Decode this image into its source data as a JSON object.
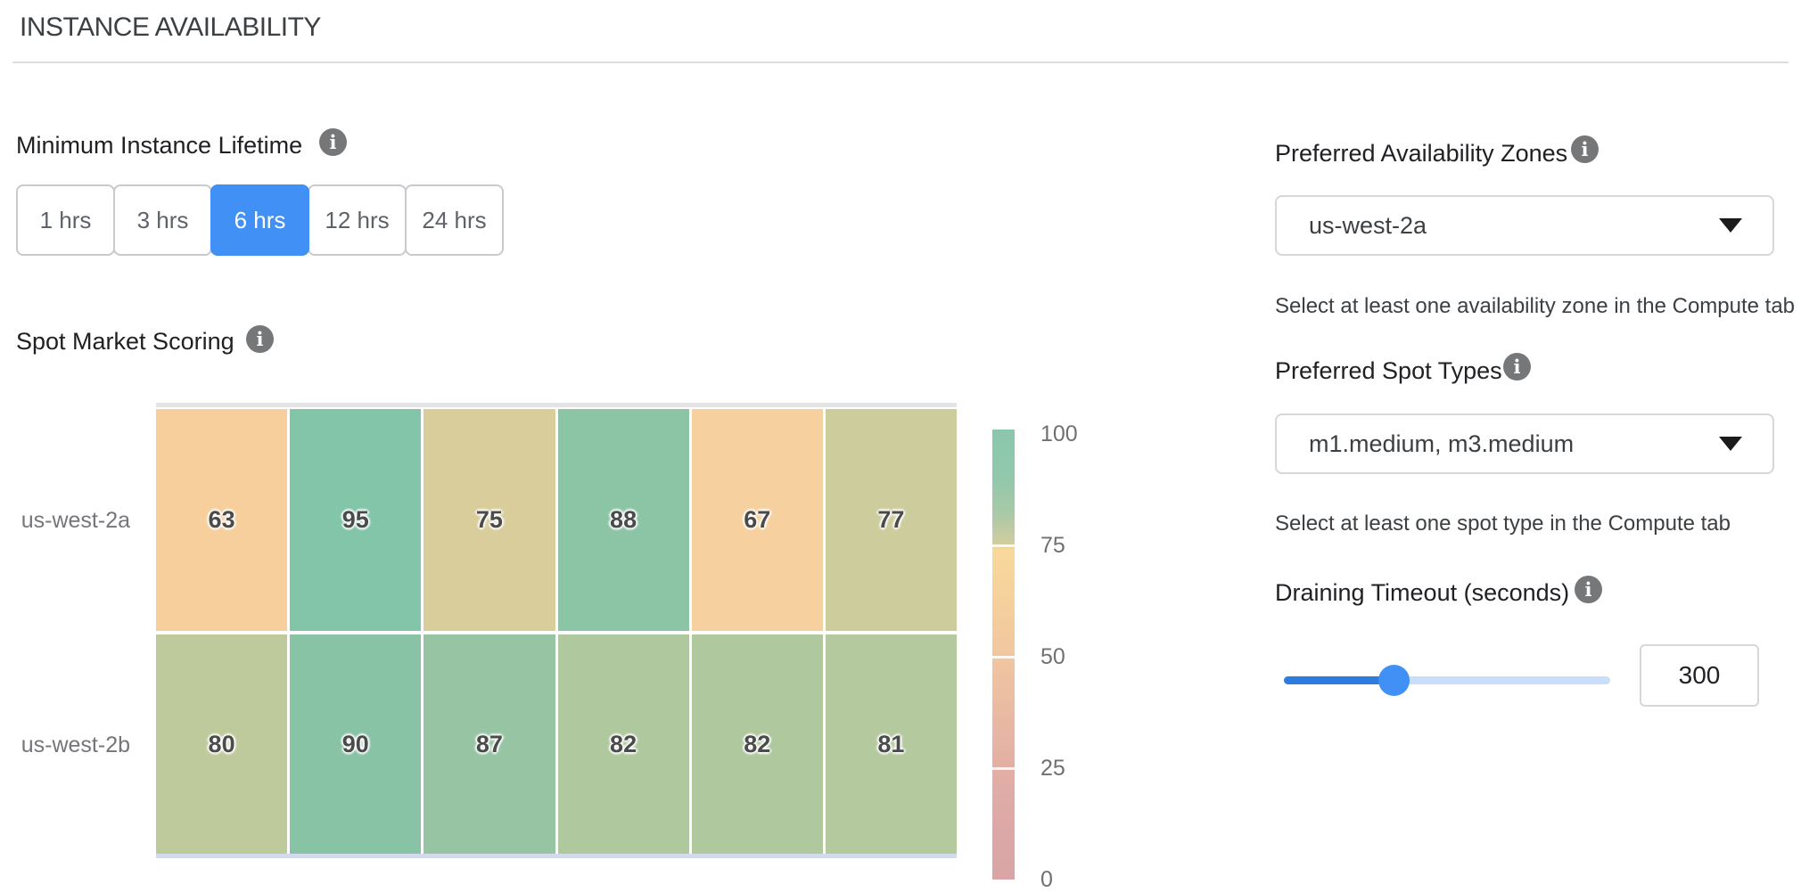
{
  "page": {
    "title": "INSTANCE AVAILABILITY"
  },
  "min_instance_lifetime": {
    "label": "Minimum Instance Lifetime",
    "selected_index": 2,
    "options": [
      {
        "label": "1 hrs"
      },
      {
        "label": "3 hrs"
      },
      {
        "label": "6 hrs"
      },
      {
        "label": "12 hrs"
      },
      {
        "label": "24 hrs"
      }
    ]
  },
  "spot_market_scoring": {
    "label": "Spot Market Scoring"
  },
  "chart_data": {
    "type": "heatmap",
    "title": "Spot Market Scoring",
    "rows": [
      "us-west-2a",
      "us-west-2b"
    ],
    "values": [
      [
        63,
        95,
        75,
        88,
        67,
        77
      ],
      [
        80,
        90,
        87,
        82,
        82,
        81
      ]
    ],
    "cell_colors": [
      [
        "#F6CF9D",
        "#82C5A9",
        "#D9CD9C",
        "#8CC5A5",
        "#F6D09E",
        "#CDCC9D"
      ],
      [
        "#BFCA9C",
        "#88C3A6",
        "#97C5A3",
        "#AFC89E",
        "#AFC89E",
        "#B4C99E"
      ]
    ],
    "value_range": [
      0,
      100
    ],
    "colorbar": {
      "ticks": [
        100,
        75,
        50,
        25,
        0
      ],
      "separator_values": [
        75,
        50,
        25
      ],
      "gradient_stops": [
        [
          0.0,
          "#8BC7AD"
        ],
        [
          0.1,
          "#90C8AB"
        ],
        [
          0.18,
          "#A6C9A7"
        ],
        [
          0.25,
          "#CFCCA0"
        ],
        [
          0.26,
          "#DACE9F"
        ],
        [
          0.266,
          "#F8D99B"
        ],
        [
          0.36,
          "#F6D29C"
        ],
        [
          0.51,
          "#F0C6A0"
        ],
        [
          0.64,
          "#E9B9A3"
        ],
        [
          0.76,
          "#E2AEA5"
        ],
        [
          0.9,
          "#DCA7A7"
        ],
        [
          1.0,
          "#DAA4A6"
        ]
      ]
    }
  },
  "preferred_azs": {
    "label": "Preferred Availability Zones",
    "value": "us-west-2a",
    "helper": "Select at least one availability zone in the Compute tab"
  },
  "preferred_spot_types": {
    "label": "Preferred Spot Types",
    "value": "m1.medium, m3.medium",
    "helper": "Select at least one spot type in the Compute tab"
  },
  "draining_timeout": {
    "label": "Draining Timeout (seconds)",
    "value": "300",
    "slider_fraction": 0.335
  },
  "colors": {
    "accent_blue": "#4190F5",
    "slider_fill": "#2E7CDF",
    "slider_rest": "#CBDEF9"
  }
}
